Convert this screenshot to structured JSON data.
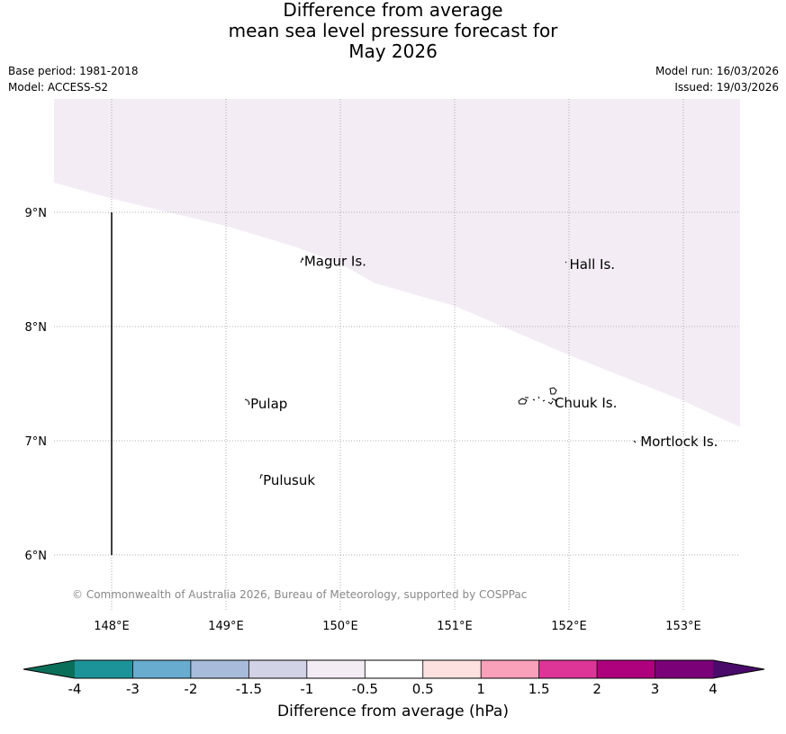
{
  "title": {
    "line1": "Difference from average",
    "line2": "mean sea level pressure forecast for",
    "line3": "May 2026"
  },
  "meta": {
    "base_period": "Base period: 1981-2018",
    "model": "Model: ACCESS-S2",
    "model_run": "Model run: 16/03/2026",
    "issued": "Issued: 19/03/2026"
  },
  "map": {
    "lon_range": [
      147.5,
      153.5
    ],
    "lat_range": [
      5.5,
      10.0
    ],
    "lon_ticks": [
      148,
      149,
      150,
      151,
      152,
      153
    ],
    "lon_tick_labels": [
      "148°E",
      "149°E",
      "150°E",
      "151°E",
      "152°E",
      "153°E"
    ],
    "lat_ticks": [
      6,
      7,
      8,
      9
    ],
    "lat_tick_labels": [
      "6°N",
      "7°N",
      "8°N",
      "9°N"
    ],
    "gridlines": true,
    "anomaly_region": {
      "category": "-1 to -0.5",
      "color": "#f3ecf5",
      "boundary": [
        [
          147.5,
          9.26
        ],
        [
          148.0,
          9.12
        ],
        [
          149.0,
          8.88
        ],
        [
          149.6,
          8.7
        ],
        [
          150.0,
          8.55
        ],
        [
          150.3,
          8.38
        ],
        [
          151.0,
          8.18
        ],
        [
          152.0,
          7.75
        ],
        [
          153.0,
          7.35
        ],
        [
          153.5,
          7.12
        ]
      ]
    },
    "places": [
      {
        "name": "Magur Is.",
        "lon": 149.66,
        "lat": 8.58
      },
      {
        "name": "Hall Is.",
        "lon": 151.98,
        "lat": 8.55
      },
      {
        "name": "Pulap",
        "lon": 149.19,
        "lat": 7.33
      },
      {
        "name": "Chuuk Is.",
        "lon": 151.85,
        "lat": 7.34
      },
      {
        "name": "Mortlock Is.",
        "lon": 152.6,
        "lat": 7.0
      },
      {
        "name": "Pulusuk",
        "lon": 149.3,
        "lat": 6.66
      }
    ],
    "copyright": "© Commonwealth of Australia 2026, Bureau of Meteorology, supported by COSPPac"
  },
  "colorbar": {
    "label": "Difference from average (hPa)",
    "ticks": [
      "-4",
      "-3",
      "-2",
      "-1.5",
      "-1",
      "-0.5",
      "0.5",
      "1",
      "1.5",
      "2",
      "3",
      "4"
    ],
    "under_color": "#0a6f5a",
    "over_color": "#4a0a6a",
    "colors": [
      "#1c9399",
      "#68accf",
      "#a8bbdb",
      "#d1d2e6",
      "#f3ecf5",
      "#ffffff",
      "#fde0e0",
      "#f9a0ba",
      "#dd3497",
      "#ae017e",
      "#7a0177"
    ]
  }
}
